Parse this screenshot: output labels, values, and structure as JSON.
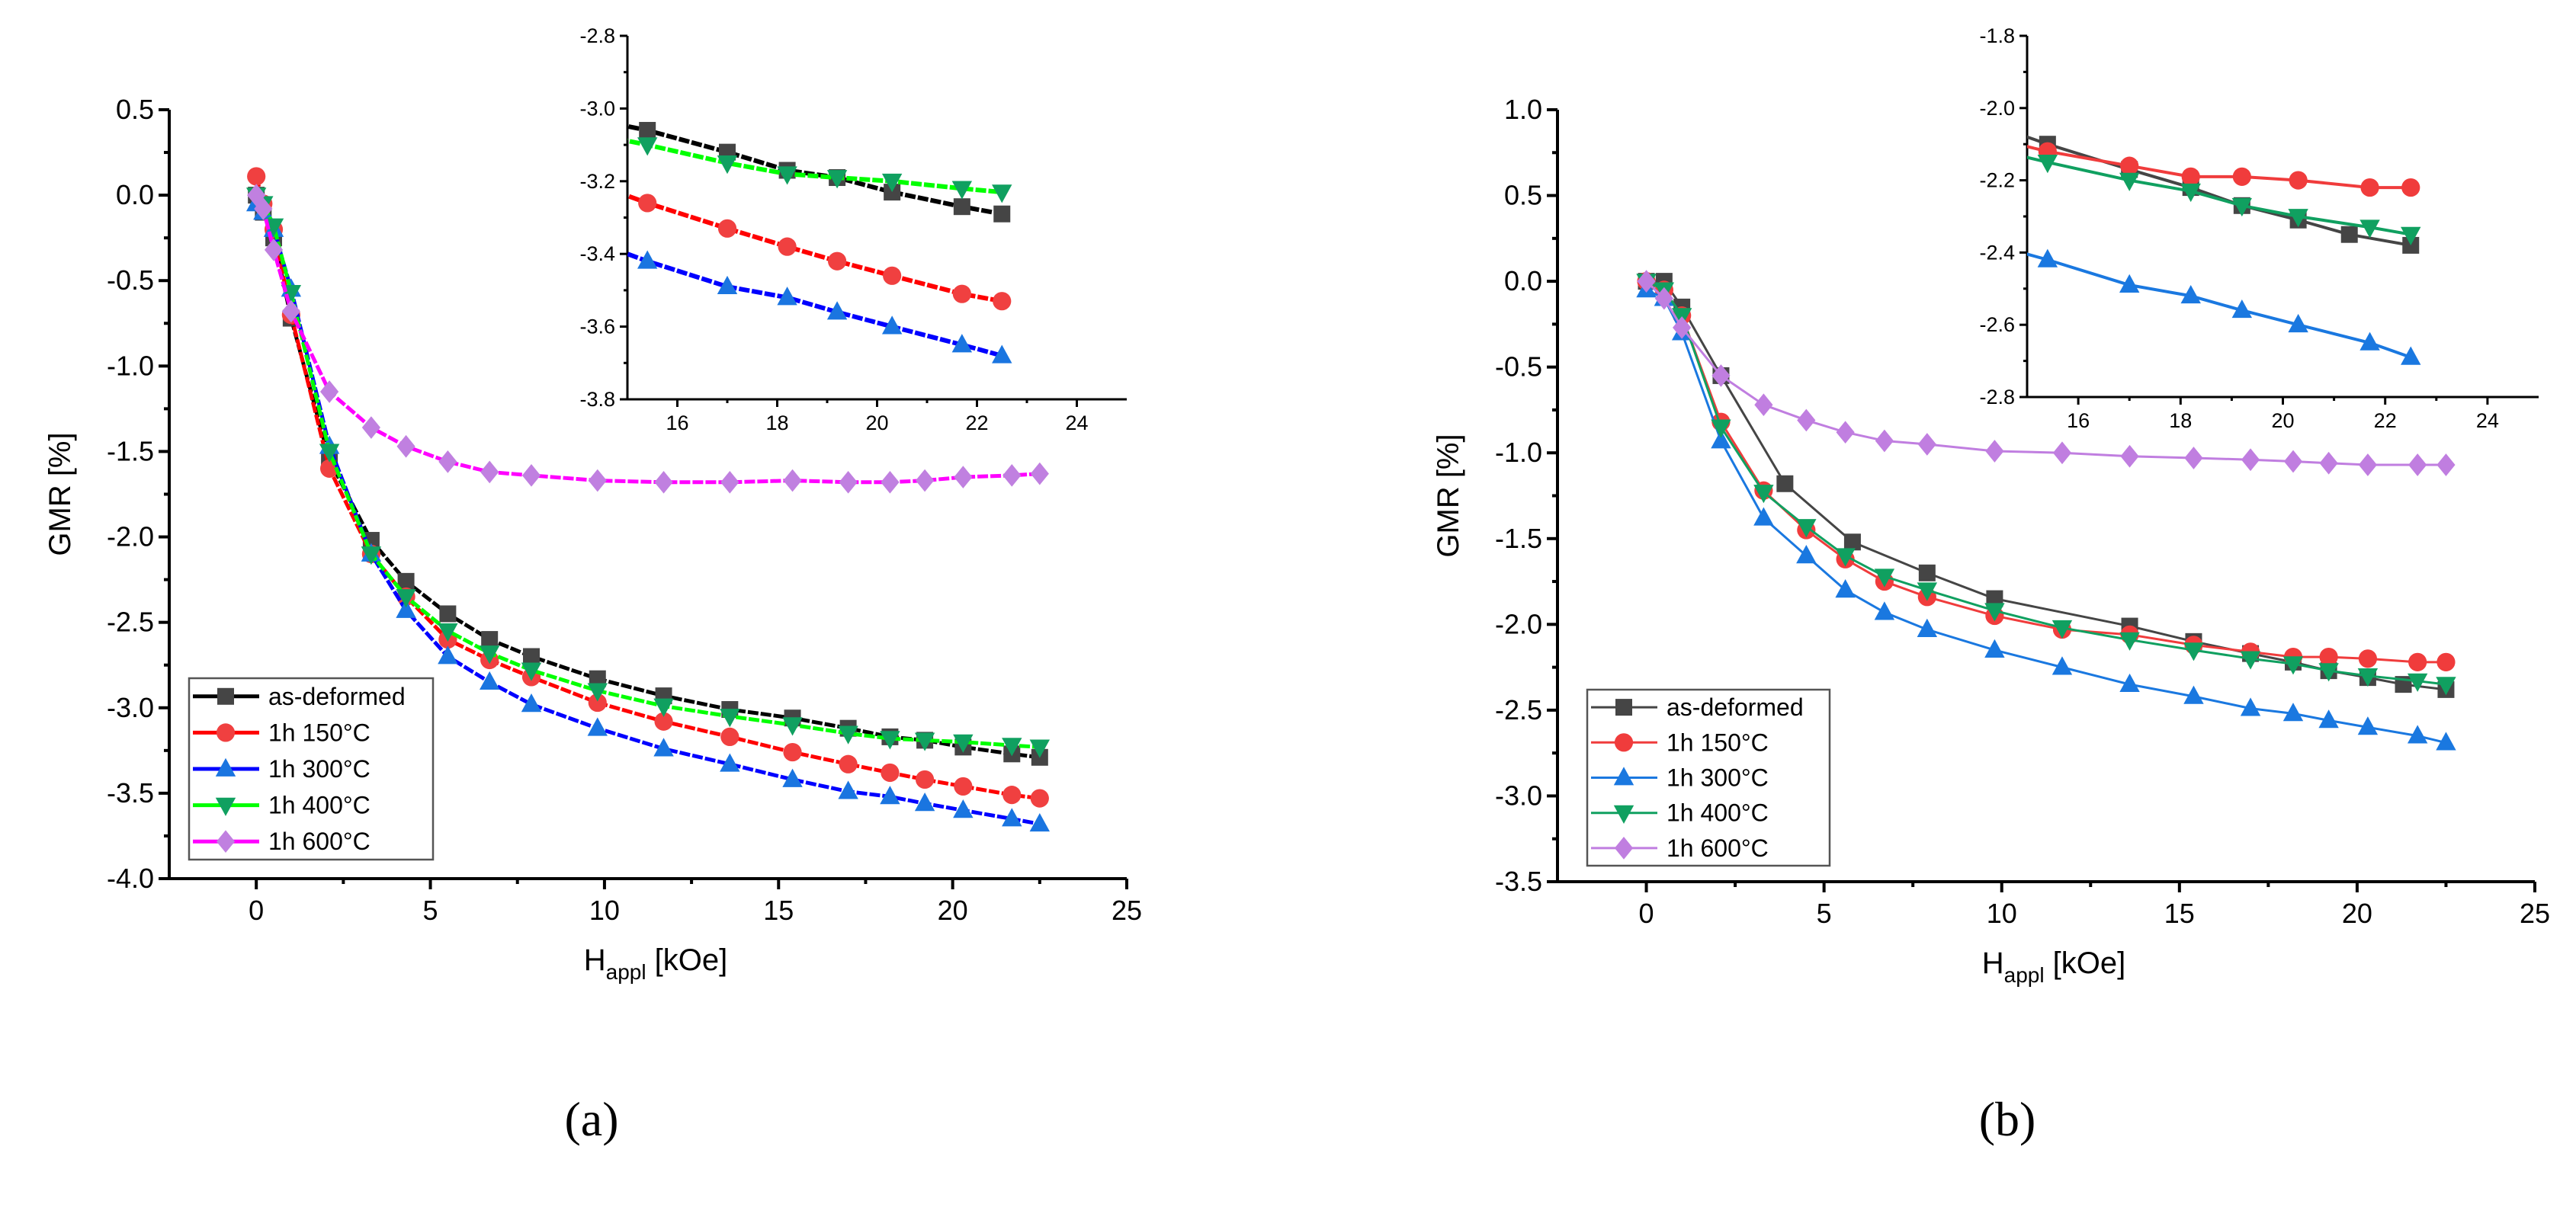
{
  "chart_data": [
    {
      "type": "line",
      "panel_label": "(a)",
      "panel_letter": "a",
      "xlabel_main": "H",
      "xlabel_sub": "appl",
      "xlabel_unit": " [kOe]",
      "ylabel": "GMR [%]",
      "xlim": [
        -2.5,
        25
      ],
      "ylim": [
        -4.0,
        0.5
      ],
      "xticks": [
        0,
        5,
        10,
        15,
        20,
        25
      ],
      "yticks": [
        0.5,
        0.0,
        -0.5,
        -1.0,
        -1.5,
        -2.0,
        -2.5,
        -3.0,
        -3.5,
        -4.0
      ],
      "ytick_labels": [
        "0.5",
        "0.0",
        "-0.5",
        "-1.0",
        "-1.5",
        "-2.0",
        "-2.5",
        "-3.0",
        "-3.5",
        "-4.0"
      ],
      "legend_position": "bottom-left",
      "inset": {
        "xlim": [
          15,
          25
        ],
        "ylim": [
          -3.8,
          -2.8
        ],
        "xticks": [
          16,
          18,
          20,
          22,
          24
        ],
        "yticks": [
          -2.8,
          -3.0,
          -3.2,
          -3.4,
          -3.6,
          -3.8
        ],
        "ytick_labels": [
          "-2.8",
          "-3.0",
          "-3.2",
          "-3.4",
          "-3.6",
          "-3.8"
        ]
      },
      "series": [
        {
          "name": "as-deformed",
          "marker": "square",
          "line_color": "#000000",
          "marker_color": "#454545",
          "x": [
            0,
            0.2,
            0.5,
            1.0,
            2.1,
            3.3,
            4.3,
            5.5,
            6.7,
            7.9,
            9.8,
            11.7,
            13.6,
            15.4,
            17.0,
            18.2,
            19.2,
            20.3,
            21.7,
            22.5
          ],
          "y": [
            0,
            -0.1,
            -0.25,
            -0.72,
            -1.55,
            -2.02,
            -2.26,
            -2.45,
            -2.6,
            -2.7,
            -2.83,
            -2.93,
            -3.01,
            -3.06,
            -3.12,
            -3.17,
            -3.19,
            -3.23,
            -3.27,
            -3.29
          ]
        },
        {
          "name": "1h 150°C",
          "marker": "circle",
          "line_color": "#ff0000",
          "marker_color": "#f04040",
          "x": [
            0,
            0.2,
            0.5,
            1.0,
            2.1,
            3.3,
            4.3,
            5.5,
            6.7,
            7.9,
            9.8,
            11.7,
            13.6,
            15.4,
            17.0,
            18.2,
            19.2,
            20.3,
            21.7,
            22.5
          ],
          "y": [
            0.11,
            -0.05,
            -0.2,
            -0.7,
            -1.6,
            -2.1,
            -2.35,
            -2.6,
            -2.72,
            -2.82,
            -2.97,
            -3.08,
            -3.17,
            -3.26,
            -3.33,
            -3.38,
            -3.42,
            -3.46,
            -3.51,
            -3.53
          ]
        },
        {
          "name": "1h 300°C",
          "marker": "triangle-up",
          "line_color": "#0000ff",
          "marker_color": "#1a75e0",
          "x": [
            0,
            0.2,
            0.5,
            1.0,
            2.1,
            3.3,
            4.3,
            5.5,
            6.7,
            7.9,
            9.8,
            11.7,
            13.6,
            15.4,
            17.0,
            18.2,
            19.2,
            20.3,
            21.7,
            22.5
          ],
          "y": [
            -0.05,
            -0.1,
            -0.2,
            -0.55,
            -1.47,
            -2.1,
            -2.43,
            -2.7,
            -2.85,
            -2.98,
            -3.12,
            -3.24,
            -3.33,
            -3.42,
            -3.49,
            -3.52,
            -3.56,
            -3.6,
            -3.65,
            -3.68
          ]
        },
        {
          "name": "1h 400°C",
          "marker": "triangle-down",
          "line_color": "#00ff00",
          "marker_color": "#10a060",
          "x": [
            0,
            0.2,
            0.5,
            1.0,
            2.1,
            3.3,
            4.3,
            5.5,
            6.7,
            7.9,
            9.8,
            11.7,
            13.6,
            15.4,
            17.0,
            18.2,
            19.2,
            20.3,
            21.7,
            22.5
          ],
          "y": [
            0,
            -0.05,
            -0.18,
            -0.57,
            -1.5,
            -2.1,
            -2.35,
            -2.55,
            -2.68,
            -2.78,
            -2.9,
            -2.99,
            -3.05,
            -3.1,
            -3.15,
            -3.18,
            -3.19,
            -3.2,
            -3.22,
            -3.23
          ]
        },
        {
          "name": "1h 600°C",
          "marker": "diamond",
          "line_color": "#ff00ff",
          "marker_color": "#c080e0",
          "x": [
            0,
            0.2,
            0.5,
            1.0,
            2.1,
            3.3,
            4.3,
            5.5,
            6.7,
            7.9,
            9.8,
            11.7,
            13.6,
            15.4,
            17.0,
            18.2,
            19.2,
            20.3,
            21.7,
            22.5
          ],
          "y": [
            0,
            -0.08,
            -0.32,
            -0.68,
            -1.15,
            -1.36,
            -1.47,
            -1.56,
            -1.62,
            -1.64,
            -1.67,
            -1.68,
            -1.68,
            -1.67,
            -1.68,
            -1.68,
            -1.67,
            -1.65,
            -1.64,
            -1.63
          ]
        }
      ]
    },
    {
      "type": "line",
      "panel_label": "(b)",
      "panel_letter": "b",
      "xlabel_main": "H",
      "xlabel_sub": "appl",
      "xlabel_unit": " [kOe]",
      "ylabel": "GMR [%]",
      "xlim": [
        -2.5,
        25
      ],
      "ylim": [
        -3.5,
        1.0
      ],
      "xticks": [
        0,
        5,
        10,
        15,
        20,
        25
      ],
      "yticks": [
        1.0,
        0.5,
        0.0,
        -0.5,
        -1.0,
        -1.5,
        -2.0,
        -2.5,
        -3.0,
        -3.5
      ],
      "ytick_labels": [
        "1.0",
        "0.5",
        "0.0",
        "-0.5",
        "-1.0",
        "-1.5",
        "-2.0",
        "-2.5",
        "-3.0",
        "-3.5"
      ],
      "legend_position": "bottom-left",
      "inset": {
        "xlim": [
          15,
          25
        ],
        "ylim": [
          -2.8,
          -1.8
        ],
        "xticks": [
          16,
          18,
          20,
          22,
          24
        ],
        "yticks": [
          -1.8,
          -2.0,
          -2.2,
          -2.4,
          -2.6,
          -2.8
        ],
        "ytick_labels": [
          "-1.8",
          "-2.0",
          "-2.2",
          "-2.4",
          "-2.6",
          "-2.8"
        ]
      },
      "series": [
        {
          "name": "as-deformed",
          "marker": "square",
          "line_color": "#454545",
          "marker_color": "#454545",
          "x": [
            0,
            0.5,
            1.0,
            2.1,
            3.9,
            5.8,
            7.9,
            9.8,
            13.6,
            15.4,
            17.0,
            18.2,
            19.2,
            20.3,
            21.3,
            22.5
          ],
          "y": [
            0,
            0,
            -0.15,
            -0.55,
            -1.18,
            -1.52,
            -1.7,
            -1.85,
            -2.01,
            -2.1,
            -2.17,
            -2.22,
            -2.27,
            -2.31,
            -2.35,
            -2.38
          ]
        },
        {
          "name": "1h 150°C",
          "marker": "circle",
          "line_color": "#f03c3c",
          "marker_color": "#f03c3c",
          "x": [
            0,
            0.5,
            1.0,
            2.1,
            3.3,
            4.5,
            5.6,
            6.7,
            7.9,
            9.8,
            11.7,
            13.6,
            15.4,
            17.0,
            18.2,
            19.2,
            20.3,
            21.7,
            22.5
          ],
          "y": [
            0,
            -0.05,
            -0.2,
            -0.82,
            -1.22,
            -1.45,
            -1.62,
            -1.75,
            -1.84,
            -1.95,
            -2.03,
            -2.06,
            -2.12,
            -2.16,
            -2.19,
            -2.19,
            -2.2,
            -2.22,
            -2.22
          ]
        },
        {
          "name": "1h 300°C",
          "marker": "triangle-up",
          "line_color": "#1a78e0",
          "marker_color": "#1a78e0",
          "x": [
            0,
            0.5,
            1.0,
            2.1,
            3.3,
            4.5,
            5.6,
            6.7,
            7.9,
            9.8,
            11.7,
            13.6,
            15.4,
            17.0,
            18.2,
            19.2,
            20.3,
            21.7,
            22.5
          ],
          "y": [
            -0.05,
            -0.1,
            -0.3,
            -0.93,
            -1.38,
            -1.6,
            -1.8,
            -1.93,
            -2.03,
            -2.15,
            -2.25,
            -2.35,
            -2.42,
            -2.49,
            -2.52,
            -2.56,
            -2.6,
            -2.65,
            -2.69
          ]
        },
        {
          "name": "1h 400°C",
          "marker": "triangle-down",
          "line_color": "#10a060",
          "marker_color": "#10a060",
          "x": [
            0,
            0.5,
            1.0,
            2.1,
            3.3,
            4.5,
            5.6,
            6.7,
            7.9,
            9.8,
            11.7,
            13.6,
            15.4,
            17.0,
            18.2,
            19.2,
            20.3,
            21.7,
            22.5
          ],
          "y": [
            0,
            -0.05,
            -0.2,
            -0.85,
            -1.23,
            -1.43,
            -1.6,
            -1.72,
            -1.8,
            -1.92,
            -2.02,
            -2.09,
            -2.15,
            -2.2,
            -2.23,
            -2.27,
            -2.3,
            -2.33,
            -2.35
          ]
        },
        {
          "name": "1h 600°C",
          "marker": "diamond",
          "line_color": "#c07ee0",
          "marker_color": "#c07ee0",
          "x": [
            0,
            0.5,
            1.0,
            2.1,
            3.3,
            4.5,
            5.6,
            6.7,
            7.9,
            9.8,
            11.7,
            13.6,
            15.4,
            17.0,
            18.2,
            19.2,
            20.3,
            21.7,
            22.5
          ],
          "y": [
            0,
            -0.1,
            -0.27,
            -0.55,
            -0.72,
            -0.81,
            -0.88,
            -0.93,
            -0.95,
            -0.99,
            -1.0,
            -1.02,
            -1.03,
            -1.04,
            -1.05,
            -1.06,
            -1.07,
            -1.07,
            -1.07
          ]
        }
      ]
    }
  ]
}
